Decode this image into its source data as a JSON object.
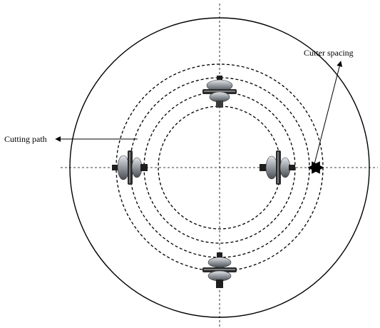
{
  "labels": {
    "cutting_path": "Cutting path",
    "cutter_spacing": "Cutter spacing"
  },
  "colors": {
    "line": "#000000",
    "background": "#ffffff",
    "cutter_dark": "#2b2b2b",
    "cutter_metal": "#9aa0a6",
    "cutter_highlight": "#e3e6ea"
  },
  "cutters": [
    {
      "name": "cutter-top",
      "orientation": "horizontal"
    },
    {
      "name": "cutter-right",
      "orientation": "vertical"
    },
    {
      "name": "cutter-bottom",
      "orientation": "horizontal"
    },
    {
      "name": "cutter-left",
      "orientation": "vertical"
    }
  ],
  "cutting_path_count": 4
}
